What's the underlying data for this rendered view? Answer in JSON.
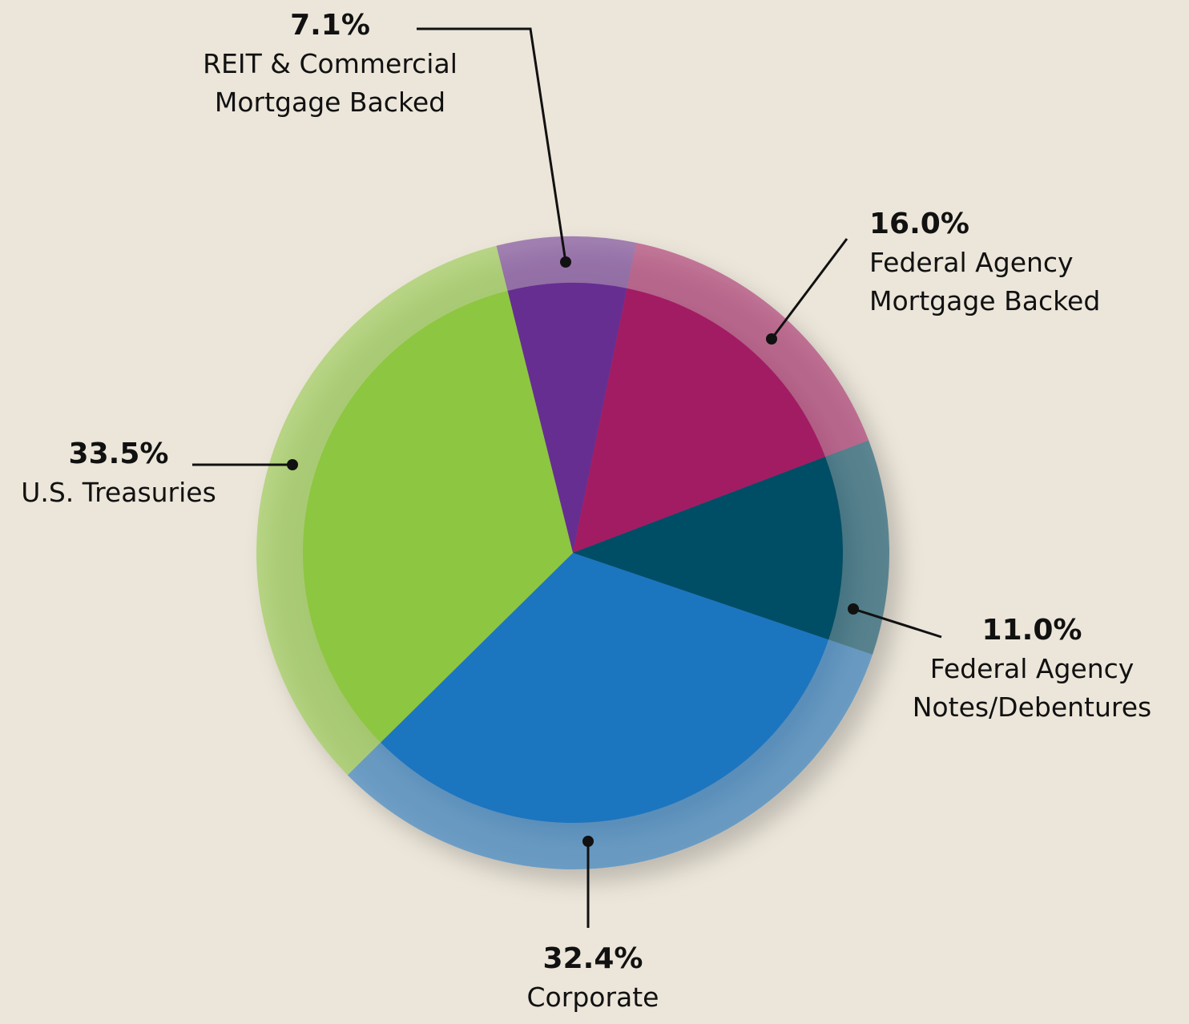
{
  "chart_data": {
    "type": "pie",
    "categories": [
      "REIT & Commercial Mortgage Backed",
      "Federal Agency Mortgage Backed",
      "Federal Agency Notes/Debentures",
      "Corporate",
      "U.S. Treasuries"
    ],
    "values": [
      7.1,
      16.0,
      11.0,
      32.4,
      33.5
    ],
    "value_labels": [
      "7.1%",
      "16.0%",
      "11.0%",
      "32.4%",
      "33.5%"
    ],
    "colors": [
      "#662d91",
      "#a21c64",
      "#004d66",
      "#1f74bf",
      "#8dc63f"
    ]
  }
}
